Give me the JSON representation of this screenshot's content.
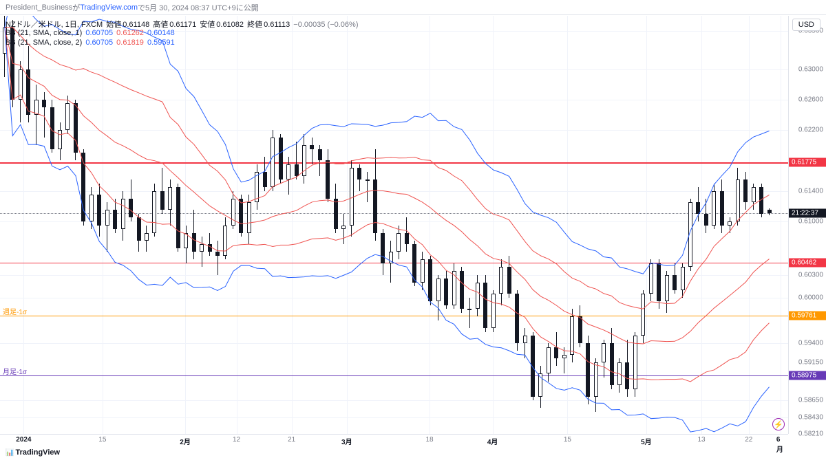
{
  "header": {
    "author": "President_Business",
    "text_ga": " が ",
    "site": "TradingView.com",
    "text_de": " で ",
    "date": "5月 30, 2024 08:37 UTC+9",
    "text_ni": " に公開"
  },
  "info": {
    "symbol": "NZドル／米ドル, 1日, FXCM",
    "open_label": "始値",
    "open": "0.61148",
    "high_label": "高値",
    "high": "0.61171",
    "low_label": "安値",
    "low": "0.61082",
    "close_label": "終値",
    "close": "0.61113",
    "change": "−0.00035 (−0.06%)",
    "change_color": "#787b86"
  },
  "bb1": {
    "label": "BB (21, SMA, close, 1)",
    "v1": "0.60705",
    "v2": "0.61262",
    "v3": "0.60148",
    "c1": "#2962ff",
    "c2": "#ef5350",
    "c3": "#2962ff"
  },
  "bb2": {
    "label": "BB (21, SMA, close, 2)",
    "v1": "0.60705",
    "v2": "0.61819",
    "v3": "0.59591",
    "c1": "#2962ff",
    "c2": "#ef5350",
    "c3": "#2962ff"
  },
  "usd_badge": "USD",
  "footer_logo": "TradingView",
  "bolt": "⚡",
  "y_axis": {
    "min": 0.5821,
    "max": 0.637,
    "ticks": [
      0.635,
      0.63,
      0.626,
      0.622,
      0.61775,
      0.614,
      0.61,
      0.60462,
      0.603,
      0.6,
      0.59761,
      0.594,
      0.5915,
      0.58975,
      0.5865,
      0.5843,
      0.5821
    ],
    "grid": [
      0.635,
      0.63,
      0.626,
      0.622,
      0.614,
      0.61,
      0.603,
      0.6,
      0.594,
      0.5865,
      0.5843
    ]
  },
  "price_tags": [
    {
      "value": 0.61775,
      "bg": "#f23645",
      "text": "0.61775"
    },
    {
      "value": 0.60462,
      "bg": "#f23645",
      "text": "0.60462"
    },
    {
      "value": 0.59761,
      "bg": "#ff9800",
      "text": "0.59761"
    },
    {
      "value": 0.58975,
      "bg": "#673ab7",
      "text": "0.58975"
    }
  ],
  "countdown": {
    "value": 0.61113,
    "bg": "#131722",
    "text": "21:22:37"
  },
  "hlines": [
    {
      "value": 0.61775,
      "color": "#f23645",
      "width": 1.5
    },
    {
      "value": 0.60462,
      "color": "#f23645",
      "width": 1.5
    },
    {
      "value": 0.59761,
      "color": "#ff9800",
      "width": 1,
      "label": "週足-1σ",
      "label_color": "#ff9800"
    },
    {
      "value": 0.58975,
      "color": "#673ab7",
      "width": 1,
      "label": "月足-1σ",
      "label_color": "#673ab7"
    }
  ],
  "current_dotted": 0.61113,
  "time_axis": {
    "labels": [
      {
        "x": 0.03,
        "text": "2024",
        "bold": true
      },
      {
        "x": 0.13,
        "text": "15"
      },
      {
        "x": 0.235,
        "text": "2月",
        "bold": true
      },
      {
        "x": 0.3,
        "text": "12"
      },
      {
        "x": 0.37,
        "text": "21"
      },
      {
        "x": 0.44,
        "text": "3月",
        "bold": true
      },
      {
        "x": 0.545,
        "text": "18"
      },
      {
        "x": 0.625,
        "text": "4月",
        "bold": true
      },
      {
        "x": 0.72,
        "text": "15"
      },
      {
        "x": 0.82,
        "text": "5月",
        "bold": true
      },
      {
        "x": 0.89,
        "text": "13"
      },
      {
        "x": 0.95,
        "text": "22"
      },
      {
        "x": 0.99,
        "text": "6月",
        "bold": true
      }
    ]
  },
  "candles": [
    {
      "x": 0.006,
      "o": 0.632,
      "h": 0.637,
      "l": 0.629,
      "c": 0.6355
    },
    {
      "x": 0.016,
      "o": 0.6355,
      "h": 0.6365,
      "l": 0.625,
      "c": 0.626
    },
    {
      "x": 0.026,
      "o": 0.626,
      "h": 0.631,
      "l": 0.623,
      "c": 0.63
    },
    {
      "x": 0.036,
      "o": 0.63,
      "h": 0.633,
      "l": 0.623,
      "c": 0.624
    },
    {
      "x": 0.046,
      "o": 0.624,
      "h": 0.628,
      "l": 0.62,
      "c": 0.626
    },
    {
      "x": 0.056,
      "o": 0.626,
      "h": 0.627,
      "l": 0.621,
      "c": 0.625
    },
    {
      "x": 0.066,
      "o": 0.625,
      "h": 0.626,
      "l": 0.619,
      "c": 0.6195
    },
    {
      "x": 0.076,
      "o": 0.6195,
      "h": 0.623,
      "l": 0.618,
      "c": 0.622
    },
    {
      "x": 0.086,
      "o": 0.622,
      "h": 0.6265,
      "l": 0.6215,
      "c": 0.6255
    },
    {
      "x": 0.096,
      "o": 0.6255,
      "h": 0.626,
      "l": 0.618,
      "c": 0.619
    },
    {
      "x": 0.106,
      "o": 0.619,
      "h": 0.6195,
      "l": 0.6095,
      "c": 0.61
    },
    {
      "x": 0.116,
      "o": 0.61,
      "h": 0.6145,
      "l": 0.609,
      "c": 0.6135
    },
    {
      "x": 0.126,
      "o": 0.6135,
      "h": 0.615,
      "l": 0.608,
      "c": 0.6095
    },
    {
      "x": 0.136,
      "o": 0.6095,
      "h": 0.6125,
      "l": 0.606,
      "c": 0.6115
    },
    {
      "x": 0.146,
      "o": 0.6115,
      "h": 0.613,
      "l": 0.6085,
      "c": 0.609
    },
    {
      "x": 0.156,
      "o": 0.609,
      "h": 0.614,
      "l": 0.6075,
      "c": 0.613
    },
    {
      "x": 0.166,
      "o": 0.613,
      "h": 0.6155,
      "l": 0.61,
      "c": 0.6105
    },
    {
      "x": 0.176,
      "o": 0.6105,
      "h": 0.611,
      "l": 0.606,
      "c": 0.6075
    },
    {
      "x": 0.186,
      "o": 0.6075,
      "h": 0.6095,
      "l": 0.606,
      "c": 0.6085
    },
    {
      "x": 0.196,
      "o": 0.6085,
      "h": 0.615,
      "l": 0.608,
      "c": 0.614
    },
    {
      "x": 0.206,
      "o": 0.614,
      "h": 0.617,
      "l": 0.611,
      "c": 0.6115
    },
    {
      "x": 0.216,
      "o": 0.6115,
      "h": 0.6155,
      "l": 0.6095,
      "c": 0.6145
    },
    {
      "x": 0.226,
      "o": 0.6145,
      "h": 0.615,
      "l": 0.606,
      "c": 0.6065
    },
    {
      "x": 0.236,
      "o": 0.6065,
      "h": 0.6095,
      "l": 0.6045,
      "c": 0.6085
    },
    {
      "x": 0.246,
      "o": 0.6085,
      "h": 0.6115,
      "l": 0.605,
      "c": 0.606
    },
    {
      "x": 0.256,
      "o": 0.606,
      "h": 0.608,
      "l": 0.604,
      "c": 0.607
    },
    {
      "x": 0.266,
      "o": 0.607,
      "h": 0.6085,
      "l": 0.6055,
      "c": 0.606
    },
    {
      "x": 0.276,
      "o": 0.606,
      "h": 0.6075,
      "l": 0.603,
      "c": 0.6055
    },
    {
      "x": 0.286,
      "o": 0.6055,
      "h": 0.6105,
      "l": 0.605,
      "c": 0.6095
    },
    {
      "x": 0.296,
      "o": 0.6095,
      "h": 0.614,
      "l": 0.609,
      "c": 0.613
    },
    {
      "x": 0.306,
      "o": 0.613,
      "h": 0.6135,
      "l": 0.608,
      "c": 0.6085
    },
    {
      "x": 0.316,
      "o": 0.6085,
      "h": 0.6135,
      "l": 0.607,
      "c": 0.6125
    },
    {
      "x": 0.326,
      "o": 0.6125,
      "h": 0.6175,
      "l": 0.6115,
      "c": 0.6165
    },
    {
      "x": 0.336,
      "o": 0.6165,
      "h": 0.6185,
      "l": 0.614,
      "c": 0.6145
    },
    {
      "x": 0.346,
      "o": 0.6145,
      "h": 0.622,
      "l": 0.614,
      "c": 0.621
    },
    {
      "x": 0.356,
      "o": 0.621,
      "h": 0.6215,
      "l": 0.615,
      "c": 0.6155
    },
    {
      "x": 0.366,
      "o": 0.6155,
      "h": 0.6185,
      "l": 0.6135,
      "c": 0.6175
    },
    {
      "x": 0.376,
      "o": 0.6175,
      "h": 0.6205,
      "l": 0.6155,
      "c": 0.616
    },
    {
      "x": 0.386,
      "o": 0.616,
      "h": 0.6215,
      "l": 0.615,
      "c": 0.62
    },
    {
      "x": 0.396,
      "o": 0.62,
      "h": 0.621,
      "l": 0.6175,
      "c": 0.6195
    },
    {
      "x": 0.406,
      "o": 0.6195,
      "h": 0.62,
      "l": 0.616,
      "c": 0.618
    },
    {
      "x": 0.416,
      "o": 0.618,
      "h": 0.6195,
      "l": 0.6125,
      "c": 0.613
    },
    {
      "x": 0.426,
      "o": 0.613,
      "h": 0.615,
      "l": 0.6085,
      "c": 0.609
    },
    {
      "x": 0.436,
      "o": 0.609,
      "h": 0.611,
      "l": 0.607,
      "c": 0.6095
    },
    {
      "x": 0.446,
      "o": 0.6095,
      "h": 0.618,
      "l": 0.608,
      "c": 0.617
    },
    {
      "x": 0.456,
      "o": 0.617,
      "h": 0.6175,
      "l": 0.614,
      "c": 0.6155
    },
    {
      "x": 0.466,
      "o": 0.6155,
      "h": 0.6165,
      "l": 0.6125,
      "c": 0.6155
    },
    {
      "x": 0.476,
      "o": 0.6155,
      "h": 0.6195,
      "l": 0.6075,
      "c": 0.6085
    },
    {
      "x": 0.486,
      "o": 0.6085,
      "h": 0.609,
      "l": 0.603,
      "c": 0.6045
    },
    {
      "x": 0.496,
      "o": 0.6045,
      "h": 0.6075,
      "l": 0.602,
      "c": 0.606
    },
    {
      "x": 0.506,
      "o": 0.606,
      "h": 0.6095,
      "l": 0.605,
      "c": 0.6085
    },
    {
      "x": 0.516,
      "o": 0.6085,
      "h": 0.6105,
      "l": 0.606,
      "c": 0.607
    },
    {
      "x": 0.526,
      "o": 0.607,
      "h": 0.6075,
      "l": 0.6015,
      "c": 0.602
    },
    {
      "x": 0.536,
      "o": 0.602,
      "h": 0.606,
      "l": 0.601,
      "c": 0.605
    },
    {
      "x": 0.546,
      "o": 0.605,
      "h": 0.6055,
      "l": 0.599,
      "c": 0.5995
    },
    {
      "x": 0.556,
      "o": 0.5995,
      "h": 0.603,
      "l": 0.597,
      "c": 0.6025
    },
    {
      "x": 0.566,
      "o": 0.6025,
      "h": 0.6035,
      "l": 0.5985,
      "c": 0.599
    },
    {
      "x": 0.576,
      "o": 0.599,
      "h": 0.6045,
      "l": 0.5985,
      "c": 0.6035
    },
    {
      "x": 0.586,
      "o": 0.6035,
      "h": 0.604,
      "l": 0.598,
      "c": 0.5985
    },
    {
      "x": 0.596,
      "o": 0.5985,
      "h": 0.6,
      "l": 0.596,
      "c": 0.5985
    },
    {
      "x": 0.606,
      "o": 0.5985,
      "h": 0.603,
      "l": 0.5975,
      "c": 0.602
    },
    {
      "x": 0.616,
      "o": 0.602,
      "h": 0.603,
      "l": 0.5955,
      "c": 0.596
    },
    {
      "x": 0.626,
      "o": 0.596,
      "h": 0.601,
      "l": 0.5955,
      "c": 0.6005
    },
    {
      "x": 0.636,
      "o": 0.6005,
      "h": 0.605,
      "l": 0.599,
      "c": 0.604
    },
    {
      "x": 0.646,
      "o": 0.604,
      "h": 0.6055,
      "l": 0.6,
      "c": 0.6005
    },
    {
      "x": 0.656,
      "o": 0.6005,
      "h": 0.601,
      "l": 0.593,
      "c": 0.594
    },
    {
      "x": 0.666,
      "o": 0.594,
      "h": 0.596,
      "l": 0.592,
      "c": 0.595
    },
    {
      "x": 0.676,
      "o": 0.595,
      "h": 0.5955,
      "l": 0.5865,
      "c": 0.587
    },
    {
      "x": 0.686,
      "o": 0.587,
      "h": 0.591,
      "l": 0.5855,
      "c": 0.59
    },
    {
      "x": 0.696,
      "o": 0.59,
      "h": 0.594,
      "l": 0.589,
      "c": 0.5935
    },
    {
      "x": 0.706,
      "o": 0.5935,
      "h": 0.5955,
      "l": 0.591,
      "c": 0.592
    },
    {
      "x": 0.716,
      "o": 0.592,
      "h": 0.5935,
      "l": 0.59,
      "c": 0.5925
    },
    {
      "x": 0.726,
      "o": 0.5925,
      "h": 0.5985,
      "l": 0.5915,
      "c": 0.5975
    },
    {
      "x": 0.736,
      "o": 0.5975,
      "h": 0.599,
      "l": 0.5935,
      "c": 0.594
    },
    {
      "x": 0.746,
      "o": 0.594,
      "h": 0.595,
      "l": 0.586,
      "c": 0.587
    },
    {
      "x": 0.756,
      "o": 0.587,
      "h": 0.592,
      "l": 0.585,
      "c": 0.5915
    },
    {
      "x": 0.766,
      "o": 0.5915,
      "h": 0.5945,
      "l": 0.5895,
      "c": 0.594
    },
    {
      "x": 0.776,
      "o": 0.594,
      "h": 0.596,
      "l": 0.588,
      "c": 0.5885
    },
    {
      "x": 0.786,
      "o": 0.5885,
      "h": 0.592,
      "l": 0.5875,
      "c": 0.5915
    },
    {
      "x": 0.796,
      "o": 0.5915,
      "h": 0.5945,
      "l": 0.587,
      "c": 0.588
    },
    {
      "x": 0.806,
      "o": 0.588,
      "h": 0.5955,
      "l": 0.587,
      "c": 0.595
    },
    {
      "x": 0.816,
      "o": 0.595,
      "h": 0.601,
      "l": 0.594,
      "c": 0.6005
    },
    {
      "x": 0.826,
      "o": 0.6005,
      "h": 0.605,
      "l": 0.5995,
      "c": 0.6045
    },
    {
      "x": 0.836,
      "o": 0.6045,
      "h": 0.605,
      "l": 0.5985,
      "c": 0.5995
    },
    {
      "x": 0.846,
      "o": 0.5995,
      "h": 0.6035,
      "l": 0.598,
      "c": 0.603
    },
    {
      "x": 0.856,
      "o": 0.603,
      "h": 0.6045,
      "l": 0.6005,
      "c": 0.601
    },
    {
      "x": 0.866,
      "o": 0.601,
      "h": 0.6045,
      "l": 0.6,
      "c": 0.604
    },
    {
      "x": 0.876,
      "o": 0.604,
      "h": 0.613,
      "l": 0.6035,
      "c": 0.6125
    },
    {
      "x": 0.886,
      "o": 0.6125,
      "h": 0.6145,
      "l": 0.61,
      "c": 0.611
    },
    {
      "x": 0.896,
      "o": 0.611,
      "h": 0.613,
      "l": 0.6085,
      "c": 0.6095
    },
    {
      "x": 0.906,
      "o": 0.6095,
      "h": 0.615,
      "l": 0.609,
      "c": 0.614
    },
    {
      "x": 0.916,
      "o": 0.614,
      "h": 0.6155,
      "l": 0.6085,
      "c": 0.6095
    },
    {
      "x": 0.926,
      "o": 0.6095,
      "h": 0.6105,
      "l": 0.6085,
      "c": 0.61
    },
    {
      "x": 0.936,
      "o": 0.61,
      "h": 0.617,
      "l": 0.6095,
      "c": 0.6155
    },
    {
      "x": 0.946,
      "o": 0.6155,
      "h": 0.6165,
      "l": 0.6115,
      "c": 0.6125
    },
    {
      "x": 0.956,
      "o": 0.6125,
      "h": 0.615,
      "l": 0.6115,
      "c": 0.6145
    },
    {
      "x": 0.966,
      "o": 0.6145,
      "h": 0.615,
      "l": 0.6105,
      "c": 0.611
    },
    {
      "x": 0.976,
      "o": 0.6115,
      "h": 0.6117,
      "l": 0.6108,
      "c": 0.6111
    }
  ],
  "bb_lines": {
    "upper2_color": "#2962ff",
    "upper1_color": "#ef5350",
    "mid_color": "#ef5350",
    "lower1_color": "#ef5350",
    "lower2_color": "#2962ff",
    "width": 1
  }
}
